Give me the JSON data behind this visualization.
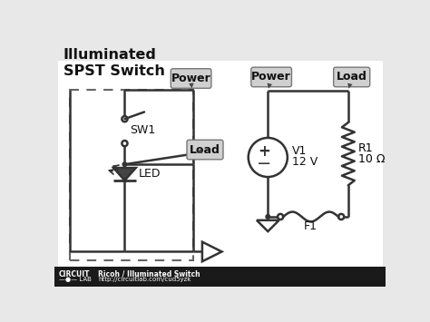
{
  "bg_color": "#e8e8e8",
  "circuit_bg": "#ffffff",
  "footer_bg": "#1a1a1a",
  "title": "Illuminated\nSPST Switch",
  "title_fontsize": 11.5,
  "line_color": "#333333",
  "box_bg": "#d0d0d0",
  "box_edge": "#777777",
  "footer_right1": "Ricoh / Illuminated Switch",
  "footer_right2": "http://circuitlab.com/cud5yzk",
  "lw": 1.8
}
